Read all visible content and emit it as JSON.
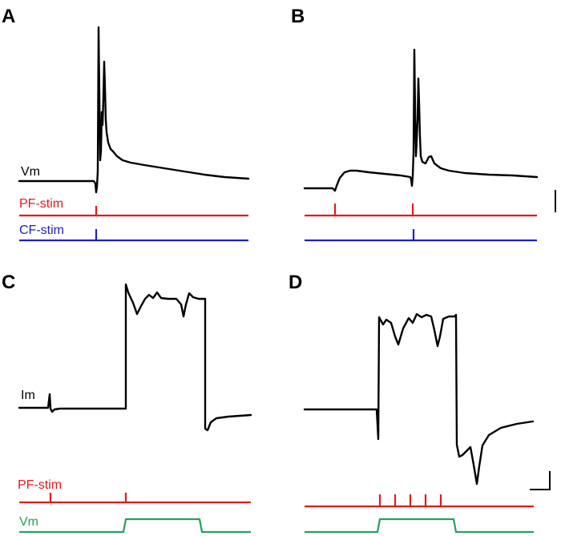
{
  "colors": {
    "trace": "#000000",
    "pf": "#e31a1c",
    "cf": "#1f1fbf",
    "vm_cmd": "#21a35b"
  },
  "panels": [
    {
      "letter": "A",
      "labels": {
        "trace": "Vm",
        "pf": "PF-stim",
        "cf": "CF-stim"
      }
    },
    {
      "letter": "B",
      "labels": {}
    },
    {
      "letter": "C",
      "labels": {
        "trace": "Im",
        "pf": "PF-stim",
        "cmd": "Vm"
      }
    },
    {
      "letter": "D",
      "labels": {}
    }
  ]
}
